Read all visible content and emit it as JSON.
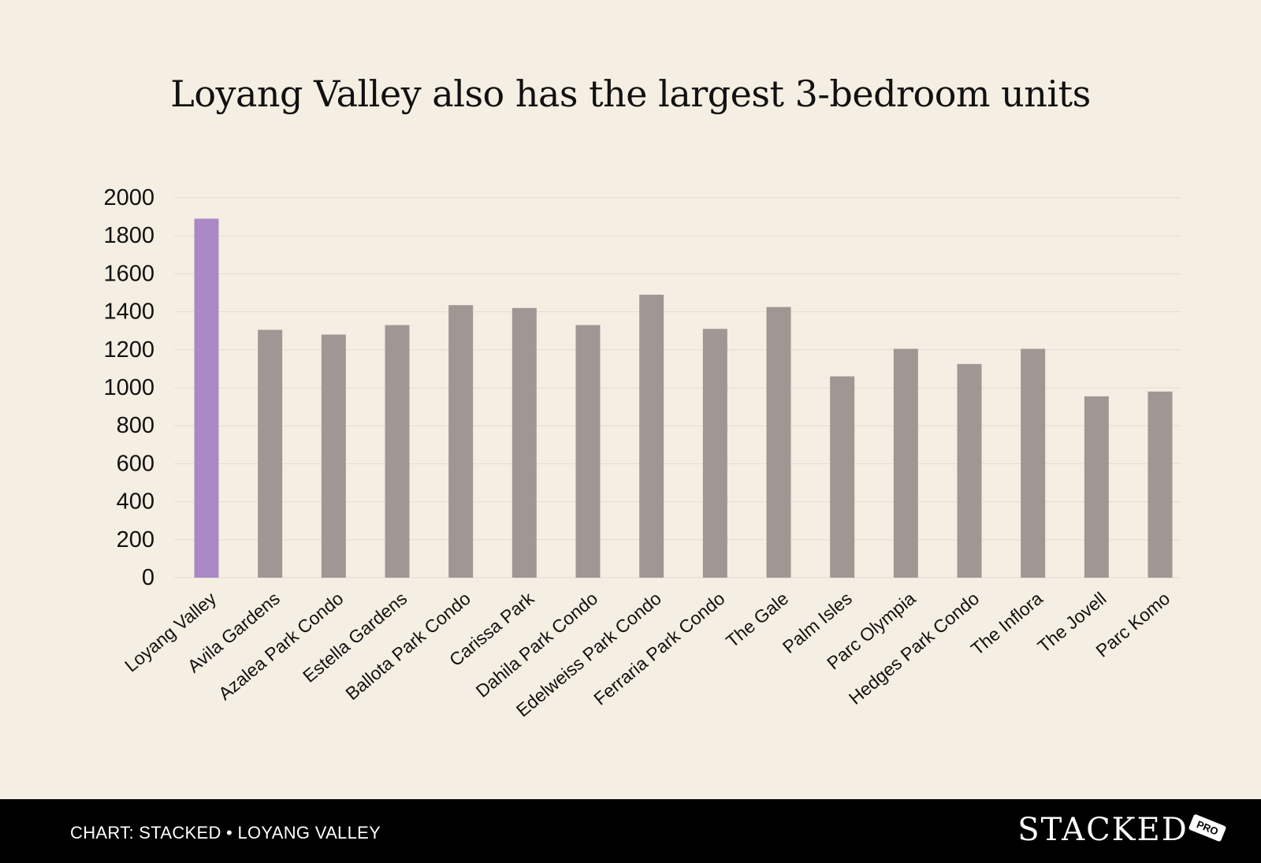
{
  "chart_data": {
    "type": "bar",
    "title": "Loyang Valley also has the largest 3-bedroom units",
    "xlabel": "",
    "ylabel": "",
    "ylim": [
      0,
      2000
    ],
    "yticks": [
      0,
      200,
      400,
      600,
      800,
      1000,
      1200,
      1400,
      1600,
      1800,
      2000
    ],
    "grid": true,
    "categories": [
      "Loyang Valley",
      "Avila Gardens",
      "Azalea Park Condo",
      "Estella Gardens",
      "Ballota Park Condo",
      "Carissa Park",
      "Dahila Park Condo",
      "Edelweiss Park Condo",
      "Ferraria Park Condo",
      "The Gale",
      "Palm Isles",
      "Parc Olympia",
      "Hedges Park Condo",
      "The Inflora",
      "The Jovell",
      "Parc Komo"
    ],
    "values": [
      1890,
      1305,
      1280,
      1330,
      1435,
      1420,
      1330,
      1490,
      1310,
      1425,
      1060,
      1205,
      1125,
      1205,
      955,
      980
    ],
    "colors": {
      "highlight": "#ab88c6",
      "default": "#9e9794",
      "grid": "#e2ddd0",
      "text": "#111111"
    },
    "highlight_index": 0
  },
  "footer": {
    "credit": "CHART: STACKED • LOYANG VALLEY",
    "logo_text": "STACKED",
    "logo_badge": "PRO"
  }
}
